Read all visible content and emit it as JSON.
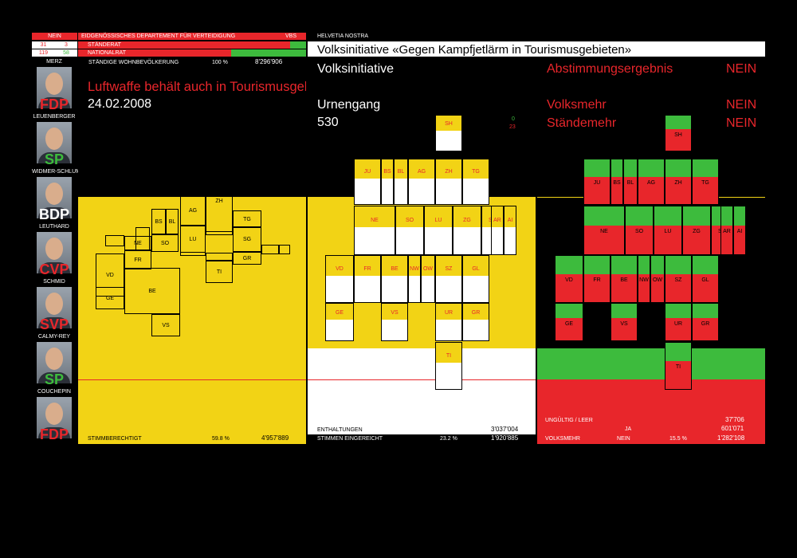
{
  "header": {
    "result_badge": "NEIN",
    "department": "EIDGENÖSSISCHES DEPARTEMENT FÜR VERTEIDIGUNG",
    "department_code": "VBS",
    "brand": "HELVETIA NOSTRA",
    "title": "Volksinitiative «Gegen Kampfjetlärm in Tourismusgebieten»",
    "staenderat_label": "STÄNDERAT",
    "staenderat_no": "31",
    "staenderat_yes": "3",
    "nationalrat_label": "NATIONALRAT",
    "nationalrat_no": "119",
    "nationalrat_yes": "58",
    "population_label": "STÄNDIGE WOHNBEVÖLKERUNG",
    "population_pct": "100 %",
    "population_value": "8'296'906"
  },
  "councillors": [
    {
      "name": "MERZ",
      "party": "FDP",
      "party_color": "#e8262b"
    },
    {
      "name": "LEUENBERGER",
      "party": "SP",
      "party_color": "#3dbb3d"
    },
    {
      "name": "WIDMER-SCHLUMPF",
      "party": "BDP",
      "party_color": "#ffffff"
    },
    {
      "name": "LEUTHARD",
      "party": "CVP",
      "party_color": "#e8262b"
    },
    {
      "name": "SCHMID",
      "party": "SVP",
      "party_color": "#e8262b"
    },
    {
      "name": "CALMY-REY",
      "party": "SP",
      "party_color": "#3dbb3d"
    },
    {
      "name": "COUCHEPIN",
      "party": "FDP",
      "party_color": "#e8262b"
    }
  ],
  "panel1": {
    "headline": "Luftwaffe behält auch in Tourismusgebieten freie Bahn",
    "date": "24.02.2008",
    "footer_label": "STIMMBERECHTIGT",
    "footer_pct": "59.8 %",
    "footer_value": "4'957'889"
  },
  "panel2": {
    "title": "Volksinitiative",
    "subtitle": "Urnengang",
    "number": "530",
    "cantons_yes": "0",
    "cantons_no": "23",
    "abstentions_label": "ENTHALTUNGEN",
    "abstentions_value": "3'037'004",
    "submitted_label": "STIMMEN EINGEREICHT",
    "submitted_pct": "23.2 %",
    "submitted_value": "1'920'885"
  },
  "panel3": {
    "result_label": "Abstimmungsergebnis",
    "result_value": "NEIN",
    "volksmehr_label": "Volksmehr",
    "volksmehr_value": "NEIN",
    "staendemehr_label": "Ständemehr",
    "staendemehr_value": "NEIN",
    "invalid_label": "UNGÜLTIG / LEER",
    "invalid_value": "37'706",
    "yes_label": "JA",
    "yes_value": "601'071",
    "volk_label": "VOLKSMEHR",
    "volk_no_label": "NEIN",
    "volk_pct": "15.5 %",
    "volk_value": "1'282'108"
  },
  "cantons": [
    "SH",
    "JU",
    "BS",
    "BL",
    "AG",
    "ZH",
    "TG",
    "NE",
    "SO",
    "LU",
    "ZG",
    "SG",
    "AR",
    "AI",
    "VD",
    "FR",
    "BE",
    "NW",
    "OW",
    "SZ",
    "GL",
    "GE",
    "VS",
    "UR",
    "GR",
    "TI"
  ],
  "map_labels": [
    "TG",
    "ZH",
    "AG",
    "BS",
    "BL",
    "NE",
    "SO",
    "LU",
    "SG",
    "FR",
    "GR",
    "VD",
    "BE",
    "TI",
    "GE",
    "VS"
  ],
  "colors": {
    "red": "#e8262b",
    "green": "#3dbb3d",
    "yellow": "#f2d315",
    "black": "#000000",
    "white": "#ffffff"
  }
}
